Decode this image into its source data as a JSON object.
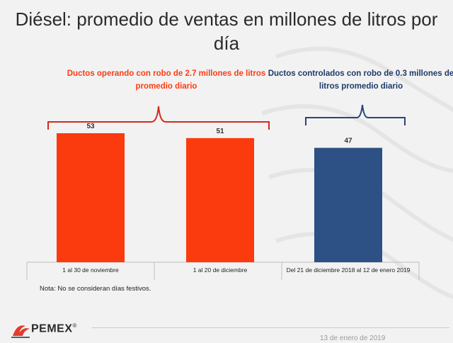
{
  "title": "Diésel: promedio de ventas en millones de litros por día",
  "annotations": {
    "red_text": "Ductos operando con robo  de 2.7 millones de litros promedio diario",
    "blue_text": "Ductos controlados con robo de 0.3 millones de litros promedio diario"
  },
  "footnote": {
    "label": "Nota",
    "text": ": No se consideran días festivos."
  },
  "branding": {
    "logo": "PEMEX",
    "registered": "®"
  },
  "date": "13 de enero de 2019",
  "colors": {
    "red": "#fb3a0e",
    "blue": "#2d5185",
    "red_text": "#ff3b12",
    "blue_text": "#1f3a6a",
    "bracket_red": "#d5281d",
    "bracket_blue": "#2a4478"
  },
  "chart_data": {
    "type": "bar",
    "title": "Diésel: promedio de ventas en millones de litros por día",
    "categories": [
      "1 al 30 de noviembre",
      "1 al 20 de diciembre",
      "Del 21 de diciembre 2018 al 12 de enero 2019"
    ],
    "values": [
      53,
      51,
      47
    ],
    "bar_colors": [
      "#fb3a0e",
      "#fb3a0e",
      "#2d5185"
    ],
    "data_labels": [
      "53",
      "51",
      "47"
    ],
    "ylim": [
      0,
      53
    ],
    "xlabel": "",
    "ylabel": "",
    "grid": false
  }
}
